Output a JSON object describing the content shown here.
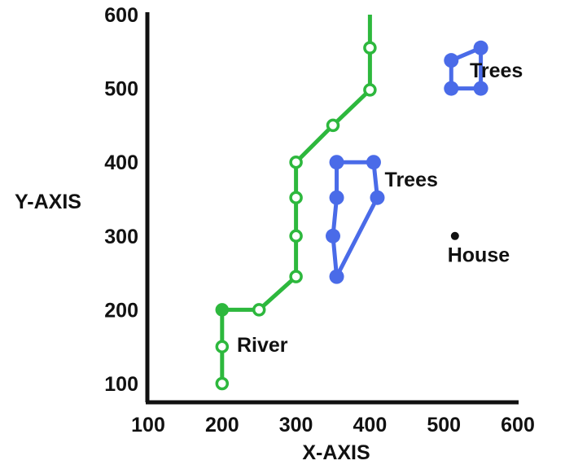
{
  "chart_data": {
    "type": "scatter",
    "title": "",
    "xlabel": "X-AXIS",
    "ylabel": "Y-AXIS",
    "xlim": [
      100,
      600
    ],
    "ylim": [
      75,
      600
    ],
    "xticks": [
      "100",
      "200",
      "300",
      "400",
      "500",
      "600"
    ],
    "yticks": [
      "100",
      "200",
      "300",
      "400",
      "500",
      "600"
    ],
    "grid": false,
    "colors": {
      "river": "#2db83d",
      "trees": "#4a6be8",
      "house": "#111111",
      "axis": "#111111"
    },
    "series": [
      {
        "kind": "river",
        "points": [
          {
            "x": 200,
            "y": 100,
            "filled": false
          },
          {
            "x": 200,
            "y": 150,
            "filled": false
          },
          {
            "x": 200,
            "y": 200,
            "filled": true
          },
          {
            "x": 250,
            "y": 200,
            "filled": false
          },
          {
            "x": 300,
            "y": 245,
            "filled": false
          },
          {
            "x": 300,
            "y": 300,
            "filled": false
          },
          {
            "x": 300,
            "y": 352,
            "filled": false
          },
          {
            "x": 300,
            "y": 400,
            "filled": false
          },
          {
            "x": 350,
            "y": 450,
            "filled": false
          },
          {
            "x": 400,
            "y": 498,
            "filled": false
          },
          {
            "x": 400,
            "y": 555,
            "filled": false
          },
          {
            "x": 400,
            "y": 600,
            "filled": null
          }
        ]
      },
      {
        "kind": "trees",
        "closed": false,
        "points": [
          {
            "x": 410,
            "y": 352
          },
          {
            "x": 355,
            "y": 245
          },
          {
            "x": 350,
            "y": 300
          },
          {
            "x": 355,
            "y": 352
          },
          {
            "x": 355,
            "y": 400
          },
          {
            "x": 405,
            "y": 400
          },
          {
            "x": 410,
            "y": 352
          }
        ]
      },
      {
        "kind": "trees",
        "closed": true,
        "points": [
          {
            "x": 510,
            "y": 538
          },
          {
            "x": 550,
            "y": 555
          },
          {
            "x": 550,
            "y": 500
          },
          {
            "x": 510,
            "y": 500
          }
        ]
      },
      {
        "kind": "house",
        "points": [
          {
            "x": 515,
            "y": 300
          }
        ]
      }
    ],
    "annotations": [
      {
        "text": "River",
        "x": 220,
        "y": 143
      },
      {
        "text": "Trees",
        "x": 420,
        "y": 367
      },
      {
        "text": "Trees",
        "x": 535,
        "y": 515
      },
      {
        "text": "House",
        "x": 505,
        "y": 265
      }
    ]
  }
}
